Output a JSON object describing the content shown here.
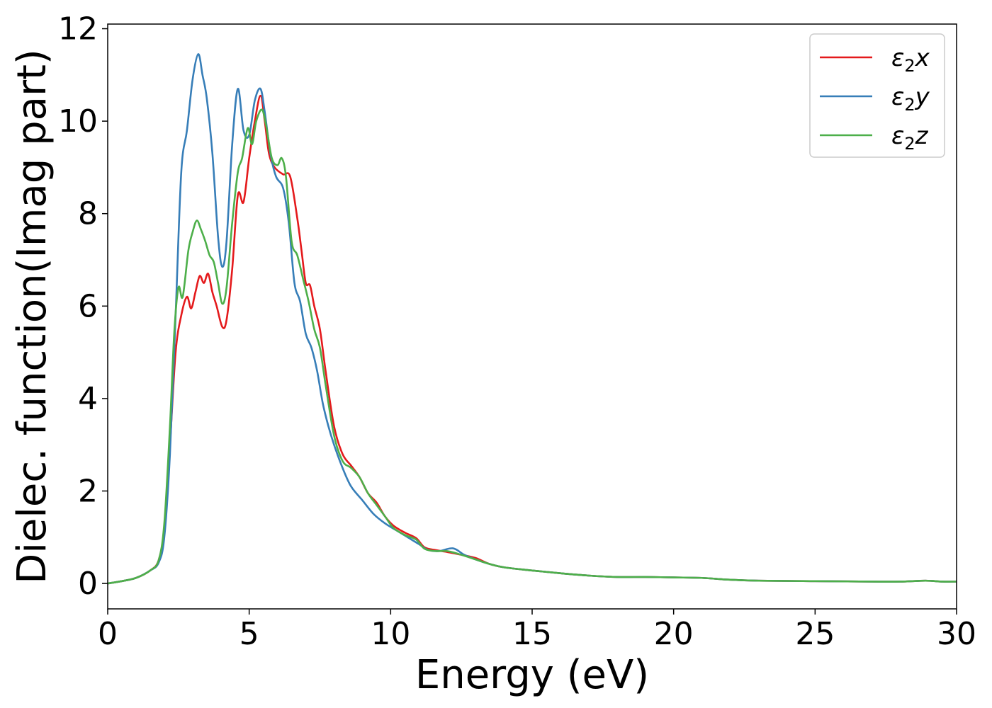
{
  "chart_data": {
    "type": "line",
    "title": "",
    "xlabel": "Energy (eV)",
    "ylabel": "Dielec. function(Imag part)",
    "xlim": [
      0,
      30
    ],
    "ylim": [
      -0.55,
      12.1
    ],
    "xticks": [
      0,
      5,
      10,
      15,
      20,
      25,
      30
    ],
    "yticks": [
      0,
      2,
      4,
      6,
      8,
      10,
      12
    ],
    "grid": false,
    "legend_position": "top-right",
    "series": [
      {
        "name": "ε₂x",
        "legend_base": "ε",
        "legend_sub": "2",
        "legend_suffix": "x",
        "color": "#e41a1c",
        "points": [
          [
            0,
            0
          ],
          [
            0.5,
            0.05
          ],
          [
            1.0,
            0.12
          ],
          [
            1.5,
            0.28
          ],
          [
            1.8,
            0.5
          ],
          [
            2.0,
            1.2
          ],
          [
            2.2,
            3.0
          ],
          [
            2.4,
            5.0
          ],
          [
            2.6,
            5.8
          ],
          [
            2.8,
            6.2
          ],
          [
            2.95,
            5.95
          ],
          [
            3.1,
            6.3
          ],
          [
            3.25,
            6.65
          ],
          [
            3.4,
            6.5
          ],
          [
            3.55,
            6.7
          ],
          [
            3.7,
            6.3
          ],
          [
            3.85,
            6.0
          ],
          [
            4.05,
            5.55
          ],
          [
            4.2,
            5.7
          ],
          [
            4.4,
            6.8
          ],
          [
            4.6,
            8.4
          ],
          [
            4.8,
            8.25
          ],
          [
            5.0,
            9.2
          ],
          [
            5.2,
            10.0
          ],
          [
            5.4,
            10.55
          ],
          [
            5.55,
            10.0
          ],
          [
            5.7,
            9.3
          ],
          [
            5.9,
            9.0
          ],
          [
            6.2,
            8.85
          ],
          [
            6.45,
            8.8
          ],
          [
            6.7,
            7.9
          ],
          [
            6.85,
            7.2
          ],
          [
            7.0,
            6.5
          ],
          [
            7.15,
            6.45
          ],
          [
            7.3,
            6.0
          ],
          [
            7.5,
            5.5
          ],
          [
            7.7,
            4.6
          ],
          [
            8.0,
            3.4
          ],
          [
            8.3,
            2.8
          ],
          [
            8.6,
            2.55
          ],
          [
            8.9,
            2.3
          ],
          [
            9.2,
            1.95
          ],
          [
            9.5,
            1.75
          ],
          [
            9.8,
            1.45
          ],
          [
            10.1,
            1.25
          ],
          [
            10.5,
            1.1
          ],
          [
            10.9,
            0.98
          ],
          [
            11.2,
            0.78
          ],
          [
            11.6,
            0.72
          ],
          [
            12.0,
            0.68
          ],
          [
            12.5,
            0.62
          ],
          [
            13.0,
            0.55
          ],
          [
            13.5,
            0.42
          ],
          [
            14.0,
            0.35
          ],
          [
            15.0,
            0.28
          ],
          [
            16.0,
            0.22
          ],
          [
            17.0,
            0.17
          ],
          [
            18.0,
            0.14
          ],
          [
            19.0,
            0.14
          ],
          [
            20.0,
            0.13
          ],
          [
            21.0,
            0.12
          ],
          [
            22.0,
            0.08
          ],
          [
            23.0,
            0.06
          ],
          [
            25.0,
            0.05
          ],
          [
            27.0,
            0.04
          ],
          [
            28.0,
            0.04
          ],
          [
            28.9,
            0.06
          ],
          [
            29.5,
            0.04
          ],
          [
            30.0,
            0.04
          ]
        ]
      },
      {
        "name": "ε₂y",
        "legend_base": "ε",
        "legend_sub": "2",
        "legend_suffix": "y",
        "color": "#377eb8",
        "points": [
          [
            0,
            0
          ],
          [
            0.5,
            0.05
          ],
          [
            1.0,
            0.12
          ],
          [
            1.5,
            0.28
          ],
          [
            1.8,
            0.45
          ],
          [
            2.0,
            1.0
          ],
          [
            2.2,
            2.8
          ],
          [
            2.4,
            5.8
          ],
          [
            2.6,
            8.9
          ],
          [
            2.8,
            9.8
          ],
          [
            3.0,
            10.9
          ],
          [
            3.2,
            11.45
          ],
          [
            3.35,
            11.0
          ],
          [
            3.5,
            10.5
          ],
          [
            3.7,
            9.3
          ],
          [
            3.9,
            7.5
          ],
          [
            4.05,
            6.85
          ],
          [
            4.2,
            7.4
          ],
          [
            4.4,
            9.5
          ],
          [
            4.6,
            10.7
          ],
          [
            4.8,
            9.8
          ],
          [
            5.0,
            9.7
          ],
          [
            5.2,
            10.45
          ],
          [
            5.4,
            10.7
          ],
          [
            5.55,
            10.2
          ],
          [
            5.75,
            9.3
          ],
          [
            5.95,
            8.8
          ],
          [
            6.2,
            8.55
          ],
          [
            6.4,
            7.8
          ],
          [
            6.6,
            6.5
          ],
          [
            6.8,
            6.1
          ],
          [
            7.0,
            5.4
          ],
          [
            7.2,
            5.1
          ],
          [
            7.4,
            4.6
          ],
          [
            7.6,
            3.9
          ],
          [
            7.8,
            3.4
          ],
          [
            8.0,
            3.0
          ],
          [
            8.3,
            2.5
          ],
          [
            8.6,
            2.1
          ],
          [
            9.0,
            1.8
          ],
          [
            9.4,
            1.5
          ],
          [
            9.8,
            1.3
          ],
          [
            10.2,
            1.15
          ],
          [
            10.6,
            1.0
          ],
          [
            11.0,
            0.85
          ],
          [
            11.3,
            0.73
          ],
          [
            11.7,
            0.7
          ],
          [
            12.2,
            0.76
          ],
          [
            12.6,
            0.62
          ],
          [
            13.0,
            0.52
          ],
          [
            13.5,
            0.42
          ],
          [
            14.0,
            0.35
          ],
          [
            15.0,
            0.28
          ],
          [
            16.0,
            0.22
          ],
          [
            17.0,
            0.17
          ],
          [
            18.0,
            0.14
          ],
          [
            19.0,
            0.14
          ],
          [
            20.0,
            0.13
          ],
          [
            21.0,
            0.12
          ],
          [
            22.0,
            0.08
          ],
          [
            23.0,
            0.06
          ],
          [
            25.0,
            0.05
          ],
          [
            27.0,
            0.04
          ],
          [
            28.0,
            0.04
          ],
          [
            28.9,
            0.06
          ],
          [
            29.5,
            0.04
          ],
          [
            30.0,
            0.04
          ]
        ]
      },
      {
        "name": "ε₂z",
        "legend_base": "ε",
        "legend_sub": "2",
        "legend_suffix": "z",
        "color": "#4daf4a",
        "points": [
          [
            0,
            0
          ],
          [
            0.5,
            0.05
          ],
          [
            1.0,
            0.12
          ],
          [
            1.5,
            0.28
          ],
          [
            1.8,
            0.5
          ],
          [
            2.0,
            1.3
          ],
          [
            2.2,
            3.4
          ],
          [
            2.35,
            5.4
          ],
          [
            2.5,
            6.4
          ],
          [
            2.65,
            6.2
          ],
          [
            2.85,
            7.2
          ],
          [
            3.0,
            7.6
          ],
          [
            3.15,
            7.85
          ],
          [
            3.3,
            7.65
          ],
          [
            3.45,
            7.4
          ],
          [
            3.6,
            7.1
          ],
          [
            3.75,
            6.95
          ],
          [
            3.9,
            6.5
          ],
          [
            4.05,
            6.05
          ],
          [
            4.2,
            6.4
          ],
          [
            4.4,
            7.8
          ],
          [
            4.6,
            8.9
          ],
          [
            4.75,
            9.2
          ],
          [
            4.95,
            9.85
          ],
          [
            5.1,
            9.5
          ],
          [
            5.25,
            10.0
          ],
          [
            5.45,
            10.25
          ],
          [
            5.6,
            9.9
          ],
          [
            5.8,
            9.2
          ],
          [
            6.0,
            9.05
          ],
          [
            6.15,
            9.2
          ],
          [
            6.3,
            8.8
          ],
          [
            6.5,
            7.4
          ],
          [
            6.7,
            7.1
          ],
          [
            6.9,
            6.6
          ],
          [
            7.1,
            6.1
          ],
          [
            7.3,
            5.5
          ],
          [
            7.5,
            5.1
          ],
          [
            7.7,
            4.3
          ],
          [
            8.0,
            3.2
          ],
          [
            8.3,
            2.65
          ],
          [
            8.6,
            2.5
          ],
          [
            8.9,
            2.3
          ],
          [
            9.2,
            1.95
          ],
          [
            9.5,
            1.7
          ],
          [
            9.8,
            1.45
          ],
          [
            10.1,
            1.2
          ],
          [
            10.5,
            1.05
          ],
          [
            10.9,
            0.95
          ],
          [
            11.2,
            0.75
          ],
          [
            11.6,
            0.7
          ],
          [
            12.0,
            0.7
          ],
          [
            12.5,
            0.62
          ],
          [
            13.0,
            0.52
          ],
          [
            13.5,
            0.42
          ],
          [
            14.0,
            0.35
          ],
          [
            15.0,
            0.28
          ],
          [
            16.0,
            0.22
          ],
          [
            17.0,
            0.17
          ],
          [
            18.0,
            0.14
          ],
          [
            19.0,
            0.14
          ],
          [
            20.0,
            0.13
          ],
          [
            21.0,
            0.12
          ],
          [
            22.0,
            0.08
          ],
          [
            23.0,
            0.06
          ],
          [
            25.0,
            0.05
          ],
          [
            27.0,
            0.04
          ],
          [
            28.0,
            0.04
          ],
          [
            28.9,
            0.06
          ],
          [
            29.5,
            0.04
          ],
          [
            30.0,
            0.04
          ]
        ]
      }
    ]
  }
}
